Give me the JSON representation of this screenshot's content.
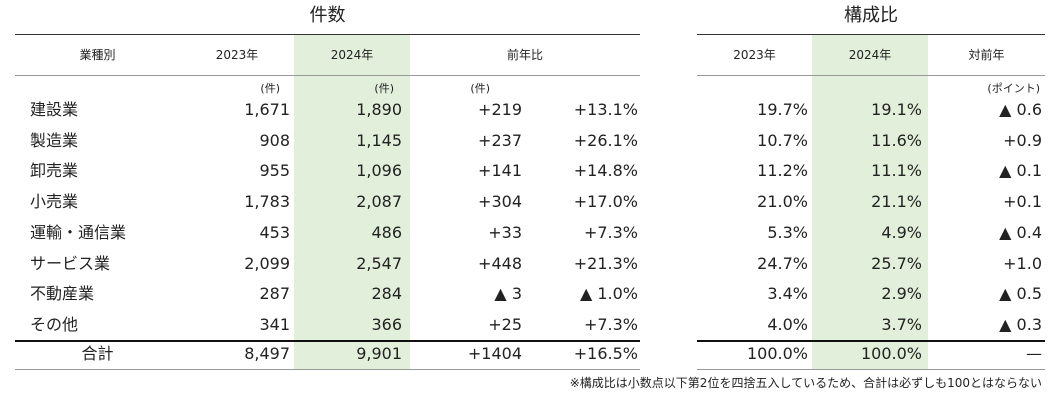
{
  "titles": {
    "count": "件数",
    "share": "構成比"
  },
  "header": [
    "業種別",
    "2023年",
    "2024年",
    "前年比",
    "2023年",
    "2024年",
    "対前年"
  ],
  "units": [
    "(件)",
    "(件)",
    "(件)",
    "(ポイント)"
  ],
  "rows": [
    [
      "建設業",
      "1,671",
      "1,890",
      "+219",
      "+13.1%",
      "19.7%",
      "19.1%",
      "▲ 0.6"
    ],
    [
      "製造業",
      "908",
      "1,145",
      "+237",
      "+26.1%",
      "10.7%",
      "11.6%",
      "+0.9"
    ],
    [
      "卸売業",
      "955",
      "1,096",
      "+141",
      "+14.8%",
      "11.2%",
      "11.1%",
      "▲ 0.1"
    ],
    [
      "小売業",
      "1,783",
      "2,087",
      "+304",
      "+17.0%",
      "21.0%",
      "21.1%",
      "+0.1"
    ],
    [
      "運輸・通信業",
      "453",
      "486",
      "+33",
      "+7.3%",
      "5.3%",
      "4.9%",
      "▲ 0.4"
    ],
    [
      "サービス業",
      "2,099",
      "2,547",
      "+448",
      "+21.3%",
      "24.7%",
      "25.7%",
      "+1.0"
    ],
    [
      "不動産業",
      "287",
      "284",
      "▲ 3",
      "▲ 1.0%",
      "3.4%",
      "2.9%",
      "▲ 0.5"
    ],
    [
      "その他",
      "341",
      "366",
      "+25",
      "+7.3%",
      "4.0%",
      "3.7%",
      "▲ 0.3"
    ]
  ],
  "total": [
    "合計",
    "8,497",
    "9,901",
    "+1404",
    "+16.5%",
    "100.0%",
    "100.0%",
    "—"
  ],
  "note": "※構成比は小数点以下第2位を四捨五入しているため、合計は必ずしも100とはならない"
}
